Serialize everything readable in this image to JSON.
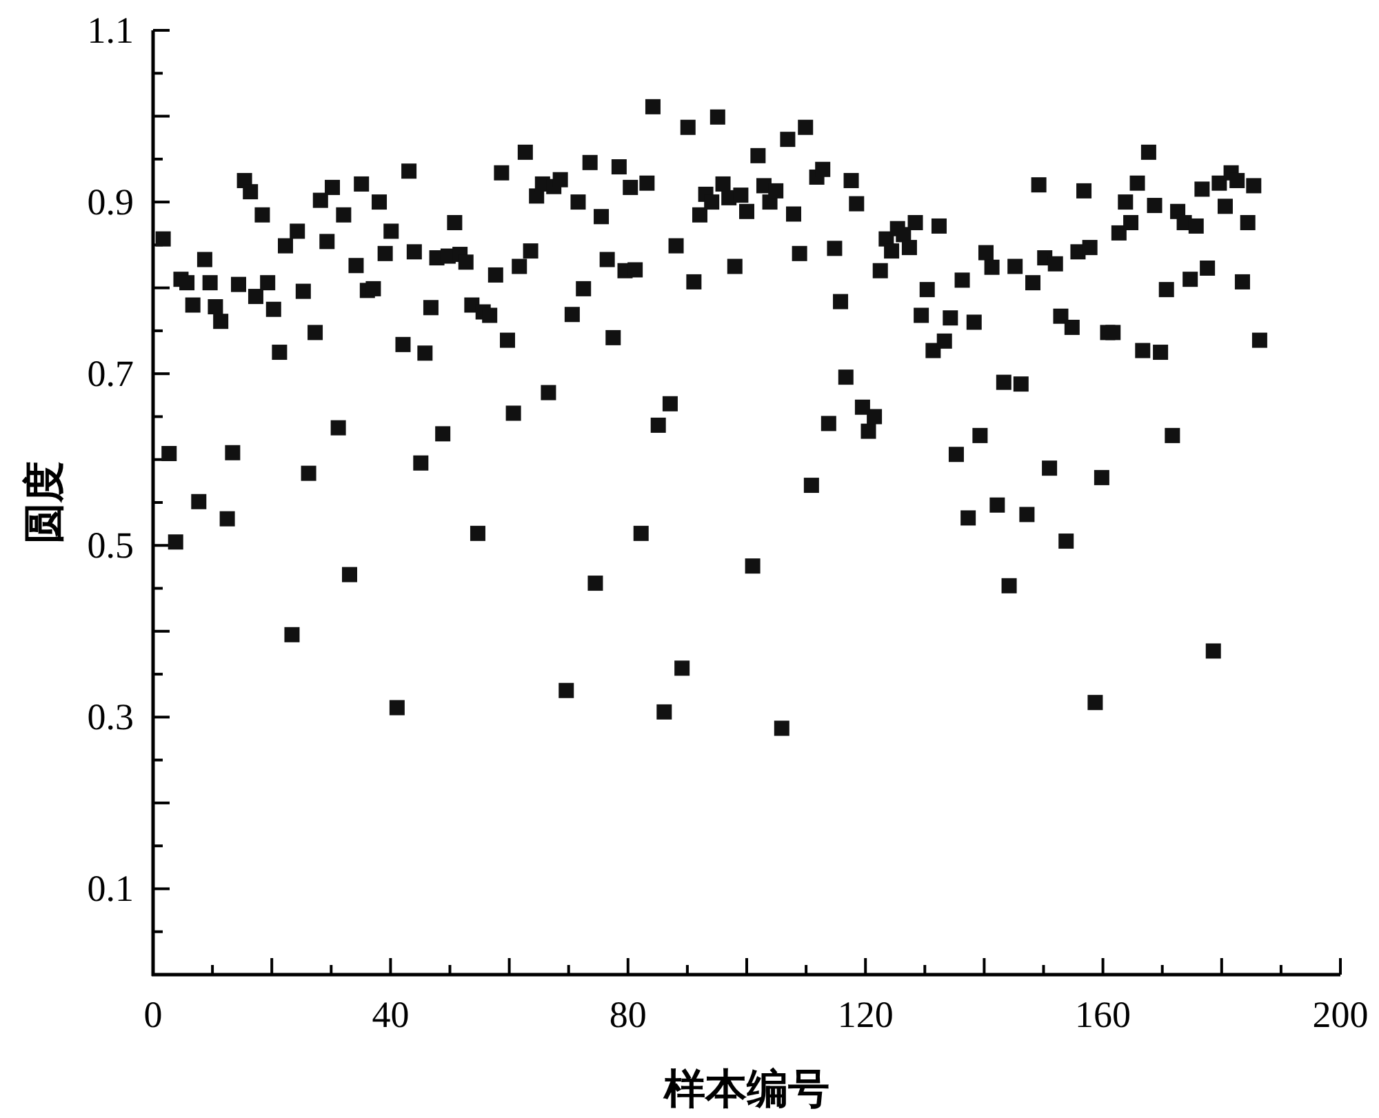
{
  "chart_data": {
    "type": "scatter",
    "xlabel": "样本编号",
    "ylabel": "圆度",
    "marker": "square",
    "grid": false,
    "xlim": [
      0,
      200
    ],
    "ylim": [
      0,
      1.1
    ],
    "xticks": [
      0,
      {
        "value": 20,
        "label": null
      },
      40,
      {
        "value": 60,
        "label": null
      },
      80,
      {
        "value": 100,
        "label": null
      },
      120,
      {
        "value": 140,
        "label": null
      },
      160,
      {
        "value": 180,
        "label": null
      },
      200
    ],
    "yticks": [
      0.1,
      {
        "value": 0.2,
        "label": null
      },
      0.3,
      {
        "value": 0.4,
        "label": null
      },
      0.5,
      {
        "value": 0.6,
        "label": null
      },
      0.7,
      {
        "value": 0.8,
        "label": null
      },
      0.9,
      {
        "value": 1.0,
        "label": null
      },
      1.1
    ],
    "series": [
      {
        "color": "#111111",
        "x": [
          1.7,
          2.7,
          3.8,
          4.7,
          5.7,
          6.7,
          7.7,
          8.7,
          9.6,
          10.5,
          11.4,
          12.5,
          13.4,
          14.4,
          15.4,
          16.4,
          17.3,
          18.4,
          19.3,
          20.3,
          21.3,
          22.3,
          23.4,
          24.3,
          25.3,
          26.2,
          27.3,
          28.2,
          29.3,
          30.2,
          31.2,
          32.1,
          33.1,
          34.2,
          35.1,
          36.1,
          37.1,
          38.1,
          39.1,
          40.1,
          41.1,
          42.1,
          43.1,
          44.0,
          45.1,
          45.8,
          46.8,
          47.8,
          48.8,
          49.7,
          50.8,
          51.7,
          52.7,
          53.7,
          54.7,
          55.6,
          56.7,
          57.7,
          58.7,
          59.7,
          60.7,
          61.7,
          62.7,
          63.6,
          64.6,
          65.6,
          66.6,
          67.5,
          68.6,
          69.6,
          70.6,
          71.6,
          72.5,
          73.6,
          74.5,
          75.5,
          76.5,
          77.5,
          78.5,
          79.5,
          80.4,
          81.2,
          82.2,
          83.2,
          84.2,
          85.1,
          86.1,
          87.1,
          88.1,
          89.1,
          90.1,
          91.1,
          92.1,
          93.1,
          94.1,
          95.1,
          96.0,
          97.0,
          98.0,
          99.0,
          100.0,
          101.0,
          101.9,
          102.9,
          103.9,
          104.9,
          105.9,
          106.9,
          107.9,
          108.9,
          109.9,
          110.9,
          111.8,
          112.8,
          113.8,
          114.8,
          115.8,
          116.7,
          117.6,
          118.5,
          119.5,
          120.5,
          121.5,
          122.5,
          123.5,
          124.4,
          125.4,
          126.4,
          127.4,
          128.4,
          129.4,
          130.4,
          131.4,
          132.4,
          133.3,
          134.3,
          135.3,
          136.3,
          137.3,
          138.3,
          139.3,
          140.3,
          141.3,
          142.2,
          143.3,
          144.2,
          145.2,
          146.2,
          147.2,
          148.2,
          149.2,
          150.2,
          151.0,
          152.0,
          152.9,
          153.8,
          154.8,
          155.8,
          156.8,
          157.8,
          158.7,
          159.8,
          160.8,
          161.7,
          162.7,
          163.8,
          164.7,
          165.8,
          166.7,
          167.7,
          168.7,
          169.7,
          170.7,
          171.7,
          172.6,
          173.7,
          174.7,
          175.7,
          176.7,
          177.6,
          178.6,
          179.6,
          180.6,
          181.6,
          182.6,
          183.5,
          184.4,
          185.4,
          186.4
        ],
        "values": [
          0.857,
          0.607,
          0.504,
          0.81,
          0.806,
          0.78,
          0.551,
          0.833,
          0.806,
          0.778,
          0.761,
          0.531,
          0.608,
          0.804,
          0.925,
          0.912,
          0.79,
          0.885,
          0.806,
          0.775,
          0.725,
          0.849,
          0.396,
          0.866,
          0.796,
          0.584,
          0.748,
          0.902,
          0.854,
          0.917,
          0.637,
          0.885,
          0.466,
          0.826,
          0.921,
          0.797,
          0.799,
          0.9,
          0.84,
          0.866,
          0.311,
          0.734,
          0.936,
          0.842,
          0.596,
          0.724,
          0.777,
          0.835,
          0.63,
          0.837,
          0.876,
          0.839,
          0.83,
          0.78,
          0.514,
          0.772,
          0.768,
          0.815,
          0.934,
          0.739,
          0.654,
          0.825,
          0.958,
          0.843,
          0.907,
          0.921,
          0.678,
          0.918,
          0.926,
          0.331,
          0.769,
          0.9,
          0.799,
          0.946,
          0.456,
          0.883,
          0.833,
          0.742,
          0.941,
          0.82,
          0.917,
          0.821,
          0.514,
          0.922,
          1.011,
          0.64,
          0.306,
          0.665,
          0.849,
          0.357,
          0.987,
          0.807,
          0.885,
          0.909,
          0.9,
          0.999,
          0.921,
          0.905,
          0.825,
          0.908,
          0.889,
          0.476,
          0.954,
          0.919,
          0.9,
          0.913,
          0.287,
          0.973,
          0.886,
          0.84,
          0.987,
          0.57,
          0.929,
          0.938,
          0.642,
          0.846,
          0.784,
          0.696,
          0.925,
          0.898,
          0.661,
          0.633,
          0.65,
          0.82,
          0.857,
          0.843,
          0.869,
          0.862,
          0.847,
          0.876,
          0.768,
          0.798,
          0.727,
          0.872,
          0.738,
          0.765,
          0.606,
          0.809,
          0.532,
          0.76,
          0.628,
          0.841,
          0.824,
          0.547,
          0.69,
          0.453,
          0.825,
          0.688,
          0.536,
          0.806,
          0.92,
          0.835,
          0.59,
          0.828,
          0.767,
          0.505,
          0.754,
          0.842,
          0.913,
          0.847,
          0.317,
          0.579,
          0.748,
          0.748,
          0.864,
          0.9,
          0.876,
          0.922,
          0.727,
          0.958,
          0.896,
          0.725,
          0.798,
          0.628,
          0.889,
          0.876,
          0.81,
          0.872,
          0.915,
          0.823,
          0.377,
          0.922,
          0.895,
          0.934,
          0.925,
          0.807,
          0.876,
          0.919,
          0.739
        ]
      }
    ]
  }
}
